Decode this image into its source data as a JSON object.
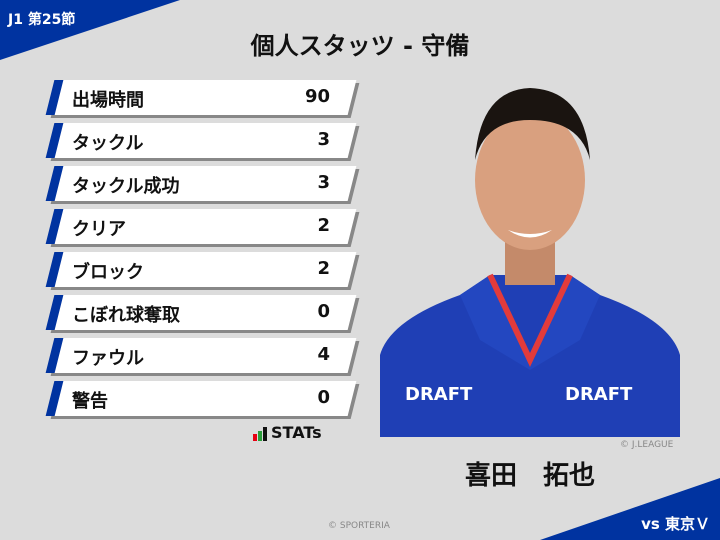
{
  "header": {
    "round": "J1 第25節",
    "title": "個人スタッツ - 守備"
  },
  "stats": [
    {
      "label": "出場時間",
      "value": "90"
    },
    {
      "label": "タックル",
      "value": "3"
    },
    {
      "label": "タックル成功",
      "value": "3"
    },
    {
      "label": "クリア",
      "value": "2"
    },
    {
      "label": "ブロック",
      "value": "2"
    },
    {
      "label": "こぼれ球奪取",
      "value": "0"
    },
    {
      "label": "ファウル",
      "value": "4"
    },
    {
      "label": "警告",
      "value": "0"
    }
  ],
  "stats_logo": "STATs",
  "player": {
    "name": "喜田　拓也",
    "photo_credit": "© J.LEAGUE",
    "jersey_text": "DRAFT"
  },
  "footer": {
    "credit": "© SPORTERIA",
    "opponent": "vs 東京Ｖ"
  },
  "colors": {
    "accent": "#0033a0",
    "background": "#dcdcdc"
  }
}
